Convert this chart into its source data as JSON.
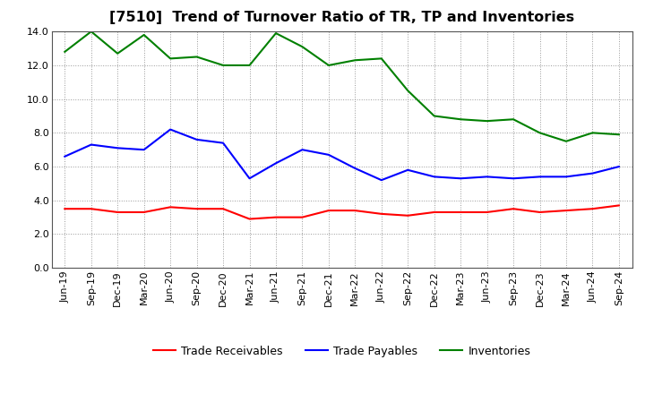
{
  "title": "[7510]  Trend of Turnover Ratio of TR, TP and Inventories",
  "labels": [
    "Jun-19",
    "Sep-19",
    "Dec-19",
    "Mar-20",
    "Jun-20",
    "Sep-20",
    "Dec-20",
    "Mar-21",
    "Jun-21",
    "Sep-21",
    "Dec-21",
    "Mar-22",
    "Jun-22",
    "Sep-22",
    "Dec-22",
    "Mar-23",
    "Jun-23",
    "Sep-23",
    "Dec-23",
    "Mar-24",
    "Jun-24",
    "Sep-24"
  ],
  "trade_receivables": [
    3.5,
    3.5,
    3.3,
    3.3,
    3.6,
    3.5,
    3.5,
    2.9,
    3.0,
    3.0,
    3.4,
    3.4,
    3.2,
    3.1,
    3.3,
    3.3,
    3.3,
    3.5,
    3.3,
    3.4,
    3.5,
    3.7
  ],
  "trade_payables": [
    6.6,
    7.3,
    7.1,
    7.0,
    8.2,
    7.6,
    7.4,
    5.3,
    6.2,
    7.0,
    6.7,
    5.9,
    5.2,
    5.8,
    5.4,
    5.3,
    5.4,
    5.3,
    5.4,
    5.4,
    5.6,
    6.0
  ],
  "inventories": [
    12.8,
    14.0,
    12.7,
    13.8,
    12.4,
    12.5,
    12.0,
    12.0,
    13.9,
    13.1,
    12.0,
    12.3,
    12.4,
    10.5,
    9.0,
    8.8,
    8.7,
    8.8,
    8.0,
    7.5,
    8.0,
    7.9
  ],
  "tr_color": "#ff0000",
  "tp_color": "#0000ff",
  "inv_color": "#008000",
  "tr_label": "Trade Receivables",
  "tp_label": "Trade Payables",
  "inv_label": "Inventories",
  "ylim": [
    0.0,
    14.0
  ],
  "yticks": [
    0.0,
    2.0,
    4.0,
    6.0,
    8.0,
    10.0,
    12.0,
    14.0
  ],
  "bg_color": "#ffffff",
  "plot_bg_color": "#ffffff",
  "grid_color": "#999999",
  "title_fontsize": 11.5,
  "legend_fontsize": 9,
  "tick_fontsize": 8
}
